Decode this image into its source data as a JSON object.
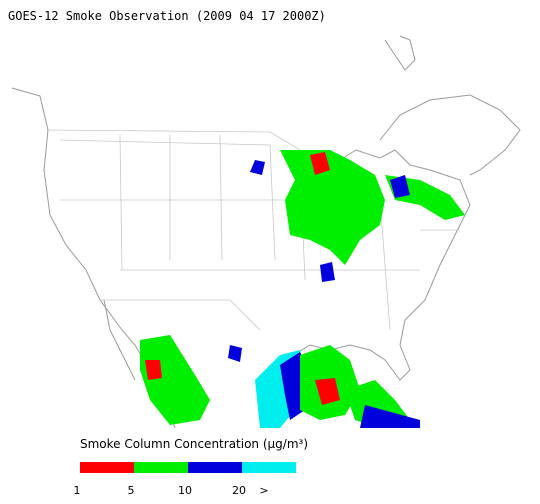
{
  "title": "GOES-12 Smoke Observation (2009 04 17  2000Z)",
  "legend": {
    "label": "Smoke Column Concentration (μg/m³)",
    "bins": [
      {
        "color": "#ff0000"
      },
      {
        "color": "#00ee00"
      },
      {
        "color": "#0000dd"
      },
      {
        "color": "#00eeee"
      }
    ],
    "ticks": [
      "1",
      "5",
      "10",
      "20",
      ">"
    ]
  }
}
